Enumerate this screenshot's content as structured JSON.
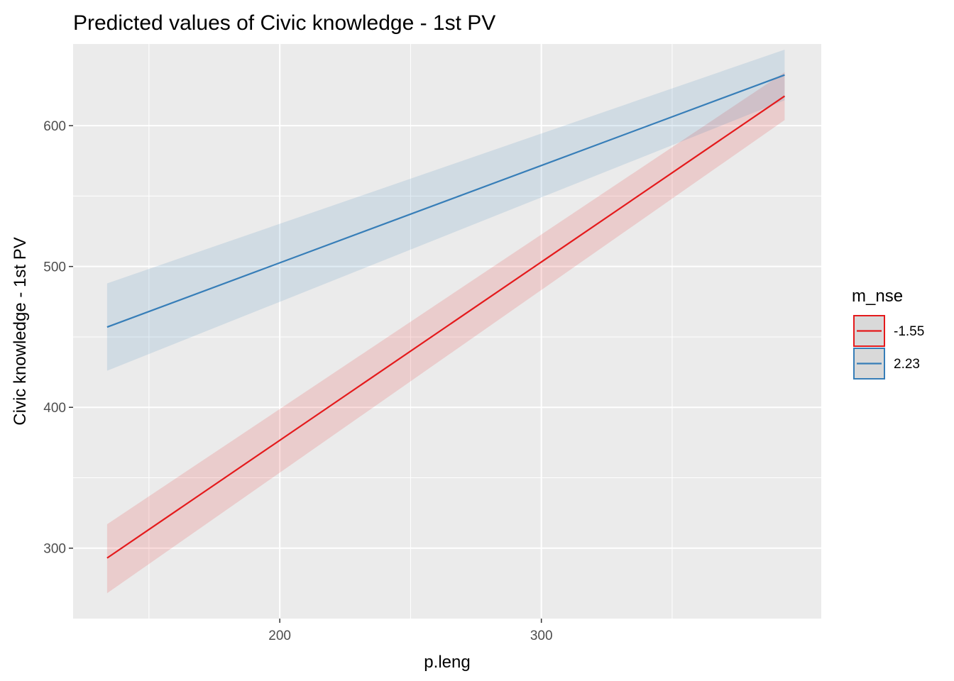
{
  "chart_data": {
    "type": "line",
    "title": "Predicted values of Civic knowledge - 1st PV",
    "xlabel": "p.leng",
    "ylabel": "Civic knowledge - 1st PV",
    "xlim": [
      121,
      407
    ],
    "ylim": [
      250,
      658
    ],
    "x_major_ticks": [
      200,
      300
    ],
    "x_minor_ticks": [
      150,
      250,
      350
    ],
    "y_major_ticks": [
      300,
      400,
      500,
      600
    ],
    "y_minor_ticks": [
      350,
      450,
      550
    ],
    "grid": true,
    "panel_background": "#ebebeb",
    "legend": {
      "title": "m_nse",
      "position": "right"
    },
    "series": [
      {
        "name": "-1.55",
        "color": "#e41a1c",
        "x": [
          134,
          393
        ],
        "y": [
          293,
          621
        ],
        "ci_low": [
          268,
          604
        ],
        "ci_high": [
          317,
          638
        ]
      },
      {
        "name": "2.23",
        "color": "#377eb8",
        "x": [
          134,
          393
        ],
        "y": [
          457,
          636
        ],
        "ci_low": [
          426,
          618
        ],
        "ci_high": [
          488,
          654
        ]
      }
    ]
  }
}
